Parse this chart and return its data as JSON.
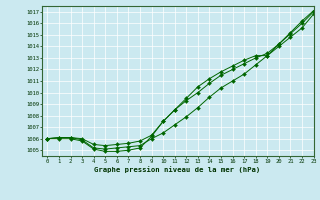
{
  "title": "Graphe pression niveau de la mer (hPa)",
  "bg_color": "#cbe9f0",
  "line_color": "#006600",
  "grid_color": "#ffffff",
  "xlim": [
    -0.5,
    23
  ],
  "ylim": [
    1004.5,
    1017.5
  ],
  "yticks": [
    1005,
    1006,
    1007,
    1008,
    1009,
    1010,
    1011,
    1012,
    1013,
    1014,
    1015,
    1016,
    1017
  ],
  "xticks": [
    0,
    1,
    2,
    3,
    4,
    5,
    6,
    7,
    8,
    9,
    10,
    11,
    12,
    13,
    14,
    15,
    16,
    17,
    18,
    19,
    20,
    21,
    22,
    23
  ],
  "series1": [
    1006.0,
    1006.1,
    1006.1,
    1005.9,
    1005.2,
    1005.1,
    1005.2,
    1005.3,
    1005.4,
    1006.0,
    1006.5,
    1007.2,
    1007.9,
    1008.7,
    1009.6,
    1010.4,
    1011.0,
    1011.6,
    1012.4,
    1013.2,
    1014.2,
    1015.2,
    1016.2,
    1017.1
  ],
  "series2": [
    1006.0,
    1006.1,
    1006.1,
    1006.0,
    1005.5,
    1005.4,
    1005.5,
    1005.6,
    1005.8,
    1006.3,
    1007.5,
    1008.5,
    1009.3,
    1010.0,
    1010.8,
    1011.5,
    1012.0,
    1012.5,
    1013.0,
    1013.4,
    1014.2,
    1015.1,
    1016.0,
    1017.0
  ],
  "series3": [
    1006.0,
    1006.0,
    1006.0,
    1005.8,
    1005.1,
    1004.9,
    1004.9,
    1005.0,
    1005.2,
    1006.2,
    1007.5,
    1008.5,
    1009.5,
    1010.5,
    1011.2,
    1011.8,
    1012.3,
    1012.8,
    1013.2,
    1013.2,
    1014.0,
    1014.8,
    1015.6,
    1016.8
  ]
}
